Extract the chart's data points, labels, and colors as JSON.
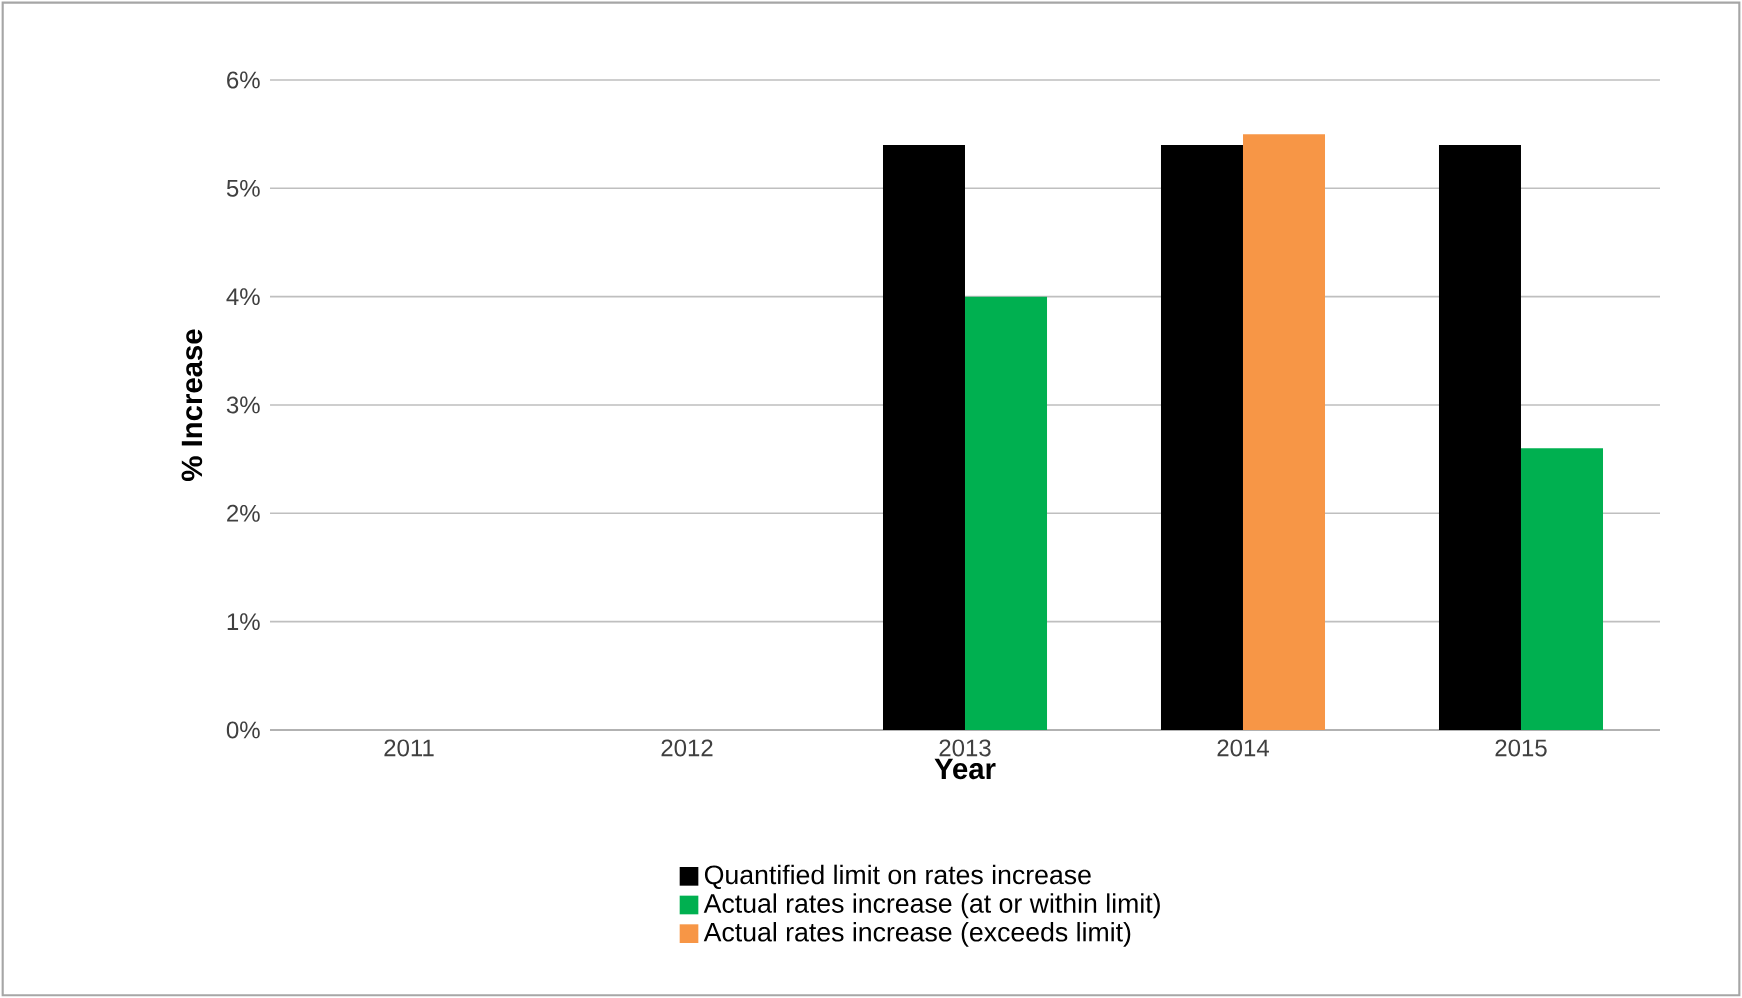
{
  "chart_data": {
    "type": "bar",
    "xlabel": "Year",
    "ylabel": "% Increase",
    "categories": [
      "2011",
      "2012",
      "2013",
      "2014",
      "2015"
    ],
    "series": [
      {
        "name": "Quantified limit on rates increase",
        "color": "#000000",
        "values": [
          null,
          null,
          5.4,
          5.4,
          5.4
        ]
      },
      {
        "name": "Actual rates increase (at or within limit)",
        "color": "#00b050",
        "values": [
          null,
          null,
          4.0,
          null,
          2.6
        ]
      },
      {
        "name": "Actual rates increase (exceeds limit)",
        "color": "#f79646",
        "values": [
          null,
          null,
          null,
          5.5,
          null
        ]
      }
    ],
    "ylim": [
      0,
      6
    ],
    "yticks": [
      {
        "value": 0,
        "label": "0%"
      },
      {
        "value": 1,
        "label": "1%"
      },
      {
        "value": 2,
        "label": "2%"
      },
      {
        "value": 3,
        "label": "3%"
      },
      {
        "value": 4,
        "label": "4%"
      },
      {
        "value": 5,
        "label": "5%"
      },
      {
        "value": 6,
        "label": "6%"
      }
    ],
    "grid": "y",
    "legend": "bottom"
  }
}
